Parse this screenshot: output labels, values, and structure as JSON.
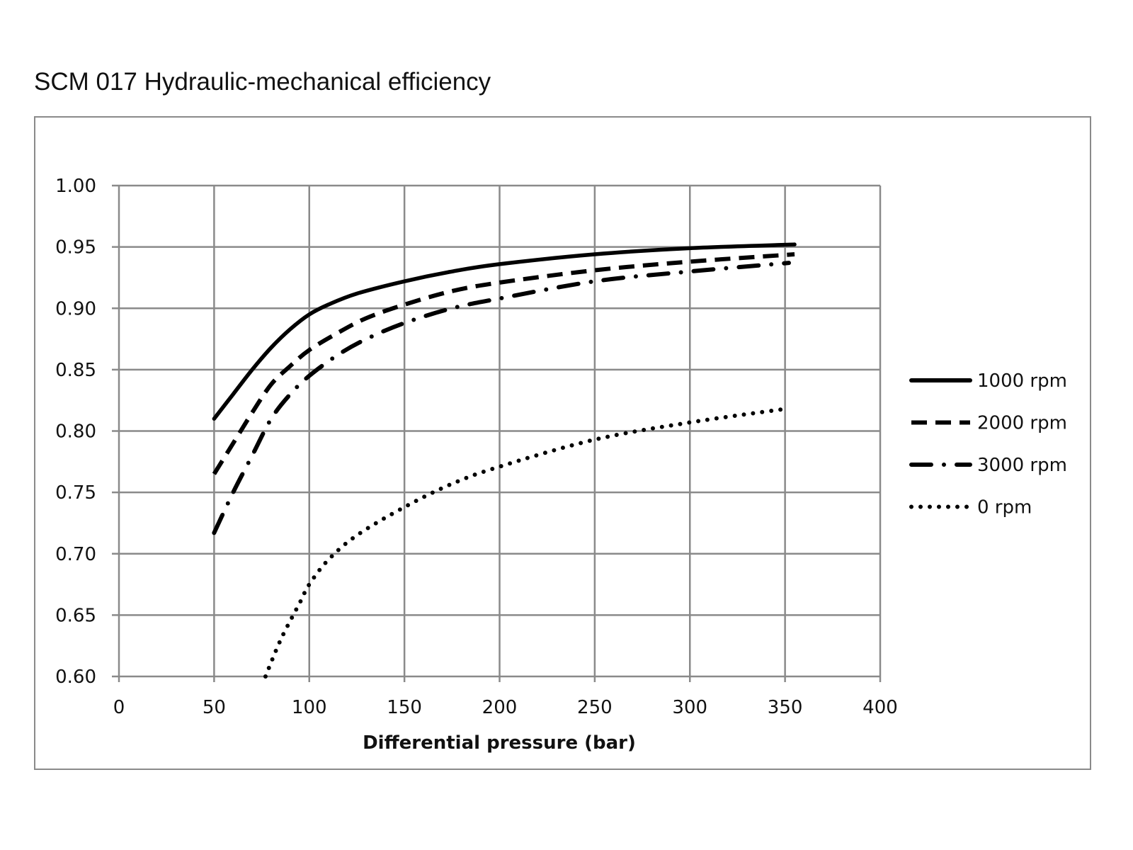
{
  "chart_data": {
    "type": "line",
    "title": "SCM 017 Hydraulic-mechanical efficiency",
    "xlabel": "Differential pressure (bar)",
    "ylabel": "",
    "xlim": [
      0,
      400
    ],
    "ylim": [
      0.6,
      1.0
    ],
    "xticks": [
      "0",
      "50",
      "100",
      "150",
      "200",
      "250",
      "300",
      "350",
      "400"
    ],
    "yticks": [
      "0.60",
      "0.65",
      "0.70",
      "0.75",
      "0.80",
      "0.85",
      "0.90",
      "0.95",
      "1.00"
    ],
    "grid": true,
    "legend_position": "right",
    "series": [
      {
        "name": "1000 rpm",
        "style": "solid",
        "x": [
          50,
          60,
          70,
          80,
          90,
          100,
          110,
          125,
          150,
          175,
          200,
          250,
          300,
          355
        ],
        "y": [
          0.81,
          0.83,
          0.85,
          0.868,
          0.883,
          0.895,
          0.903,
          0.912,
          0.922,
          0.93,
          0.936,
          0.944,
          0.949,
          0.952
        ]
      },
      {
        "name": "2000 rpm",
        "style": "dashed",
        "x": [
          50,
          60,
          70,
          80,
          90,
          100,
          115,
          130,
          150,
          175,
          200,
          250,
          300,
          355
        ],
        "y": [
          0.765,
          0.79,
          0.815,
          0.838,
          0.853,
          0.866,
          0.88,
          0.892,
          0.903,
          0.914,
          0.921,
          0.931,
          0.938,
          0.944
        ]
      },
      {
        "name": "3000 rpm",
        "style": "dash-dot",
        "x": [
          50,
          60,
          70,
          80,
          90,
          100,
          115,
          130,
          150,
          175,
          200,
          250,
          300,
          352
        ],
        "y": [
          0.717,
          0.75,
          0.78,
          0.81,
          0.83,
          0.845,
          0.862,
          0.875,
          0.888,
          0.9,
          0.908,
          0.922,
          0.93,
          0.937
        ]
      },
      {
        "name": "0 rpm",
        "style": "dotted",
        "x": [
          77,
          85,
          95,
          100,
          110,
          125,
          150,
          175,
          200,
          250,
          300,
          350
        ],
        "y": [
          0.6,
          0.63,
          0.66,
          0.675,
          0.695,
          0.715,
          0.738,
          0.757,
          0.771,
          0.793,
          0.807,
          0.818
        ]
      }
    ]
  }
}
